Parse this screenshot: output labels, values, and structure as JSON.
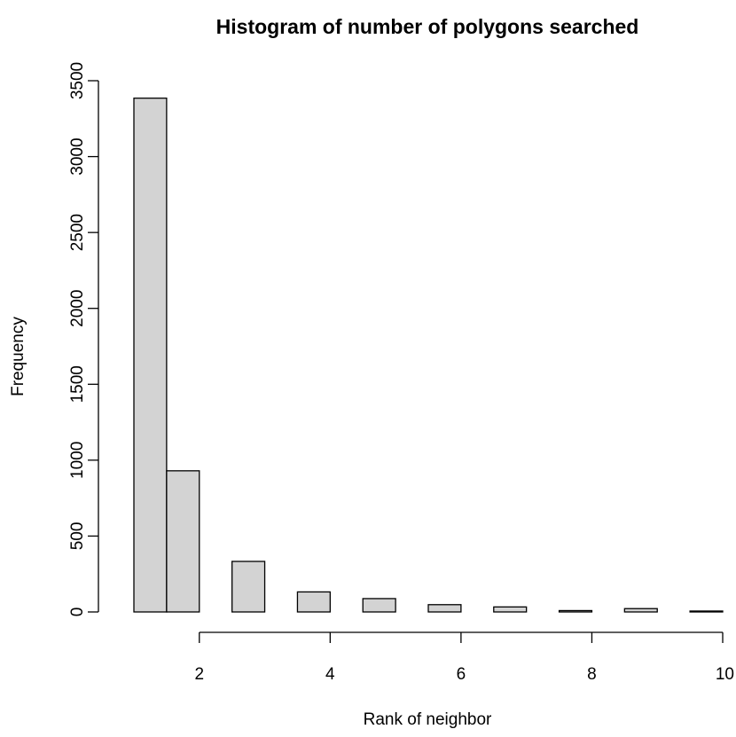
{
  "chart_data": {
    "type": "bar",
    "title": "Histogram of number of polygons searched",
    "xlabel": "Rank of neighbor",
    "ylabel": "Frequency",
    "bar_color": "#d3d3d3",
    "bars": [
      {
        "x0": 1.0,
        "x1": 1.5,
        "value": 3385
      },
      {
        "x0": 1.5,
        "x1": 2.0,
        "value": 930
      },
      {
        "x0": 2.5,
        "x1": 3.0,
        "value": 333
      },
      {
        "x0": 3.5,
        "x1": 4.0,
        "value": 132
      },
      {
        "x0": 4.5,
        "x1": 5.0,
        "value": 88
      },
      {
        "x0": 5.5,
        "x1": 6.0,
        "value": 48
      },
      {
        "x0": 6.5,
        "x1": 7.0,
        "value": 33
      },
      {
        "x0": 7.5,
        "x1": 8.0,
        "value": 9
      },
      {
        "x0": 8.5,
        "x1": 9.0,
        "value": 22
      },
      {
        "x0": 9.5,
        "x1": 10.0,
        "value": 6
      }
    ],
    "xlim": [
      1,
      10
    ],
    "ylim": [
      0,
      3500
    ],
    "xticks": [
      2,
      4,
      6,
      8,
      10
    ],
    "yticks": [
      0,
      500,
      1000,
      1500,
      2000,
      2500,
      3000,
      3500
    ],
    "grid": false
  }
}
